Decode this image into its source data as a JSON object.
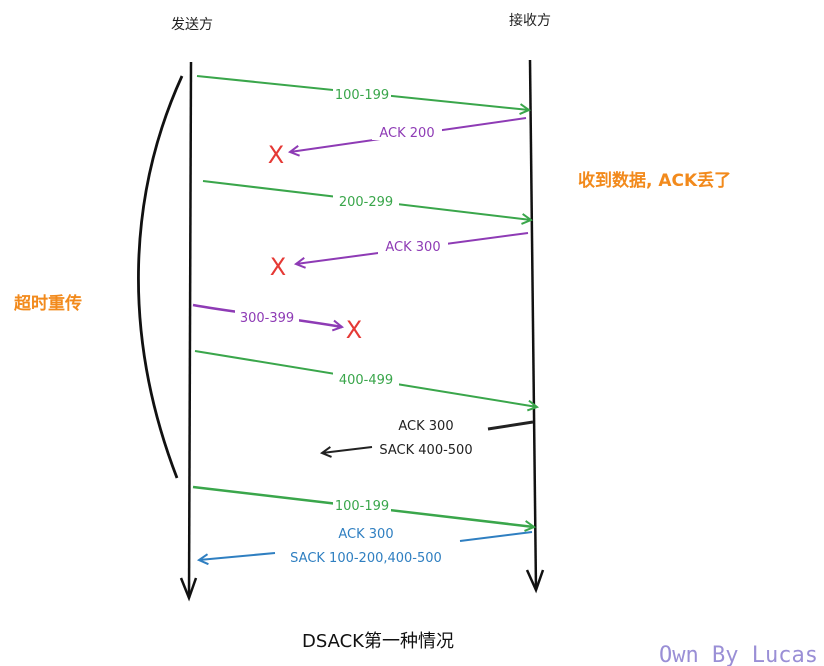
{
  "headers": {
    "sender": "发送方",
    "receiver": "接收方"
  },
  "messages": [
    {
      "label": "100-199",
      "color": "#3aa64b"
    },
    {
      "label": "ACK 200",
      "color": "#8e3bb5"
    },
    {
      "label": "200-299",
      "color": "#3aa64b"
    },
    {
      "label": "ACK 300",
      "color": "#8e3bb5"
    },
    {
      "label": "300-399",
      "color": "#8e3bb5"
    },
    {
      "label": "400-499",
      "color": "#3aa64b"
    },
    {
      "label": "ACK 300",
      "label2": "SACK 400-500",
      "color": "#222222"
    },
    {
      "label": "100-199",
      "color": "#3aa64b"
    },
    {
      "label": "ACK 300",
      "label2": "SACK 100-200,400-500",
      "color": "#2f7fc1"
    }
  ],
  "notes": {
    "ack_lost": "收到数据, ACK丢了",
    "timeout_retransmit": "超时重传"
  },
  "lost_marker": "X",
  "lost_color": "#e53935",
  "title": "DSACK第一种情况",
  "watermark": "Own By Lucas"
}
